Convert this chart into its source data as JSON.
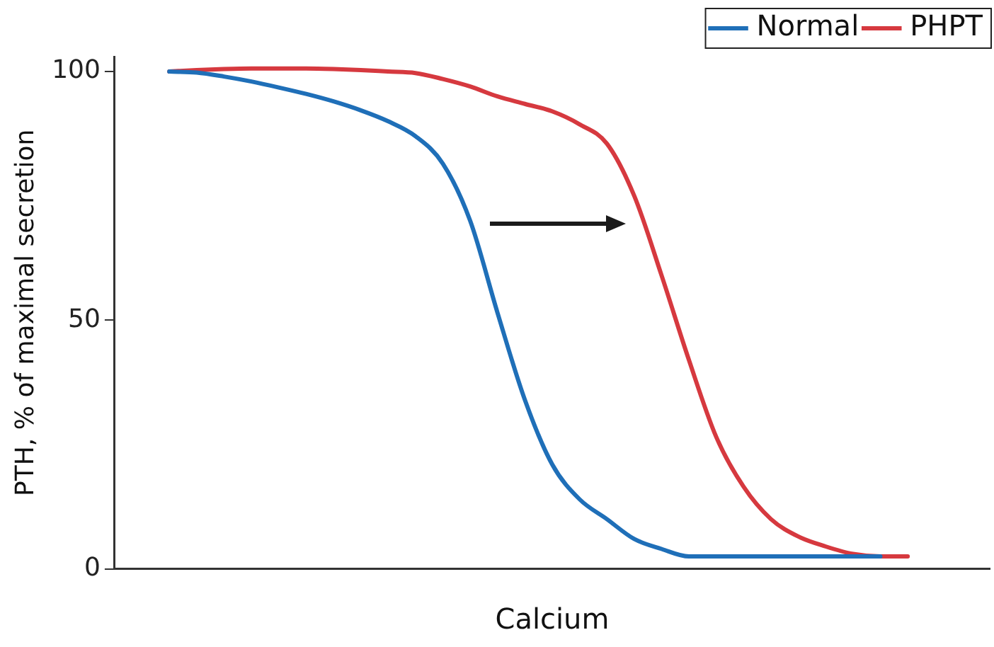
{
  "chart_data": {
    "type": "line",
    "xlabel": "Calcium",
    "ylabel": "PTH, % of maximal secretion",
    "categories": [
      null,
      null,
      null,
      null,
      null,
      null,
      null,
      null,
      null,
      null,
      null,
      null,
      null,
      null,
      null,
      null,
      null,
      null,
      null,
      null,
      null,
      null,
      null,
      null,
      null,
      null,
      null,
      null,
      null,
      null,
      null,
      null,
      null
    ],
    "series": [
      {
        "name": "Normal",
        "color": "#1f6fb8",
        "values": [
          null,
          null,
          100,
          99.8,
          99,
          98,
          96.8,
          95.5,
          94,
          92.2,
          90,
          87,
          81.5,
          70,
          51.5,
          34,
          21,
          14,
          10,
          6,
          4,
          2.5,
          2.5,
          2.5,
          2.5,
          2.5,
          2.5,
          2.5,
          2.5,
          null,
          null,
          null,
          null
        ]
      },
      {
        "name": "PHPT",
        "color": "#d6393f",
        "values": [
          null,
          null,
          100,
          100.3,
          100.5,
          100.6,
          100.6,
          100.6,
          100.5,
          100.3,
          100,
          99.7,
          98.5,
          97,
          95,
          93.5,
          92,
          89.4,
          85.5,
          75,
          59,
          42,
          26.5,
          16.5,
          10,
          6.5,
          4.5,
          3,
          2.5,
          2.5,
          null,
          null,
          null
        ]
      }
    ],
    "ylim": [
      0,
      103
    ],
    "yticks": [
      0,
      50,
      100
    ],
    "grid": false,
    "legend": "top right",
    "marker": "none",
    "line_style": "solid"
  }
}
